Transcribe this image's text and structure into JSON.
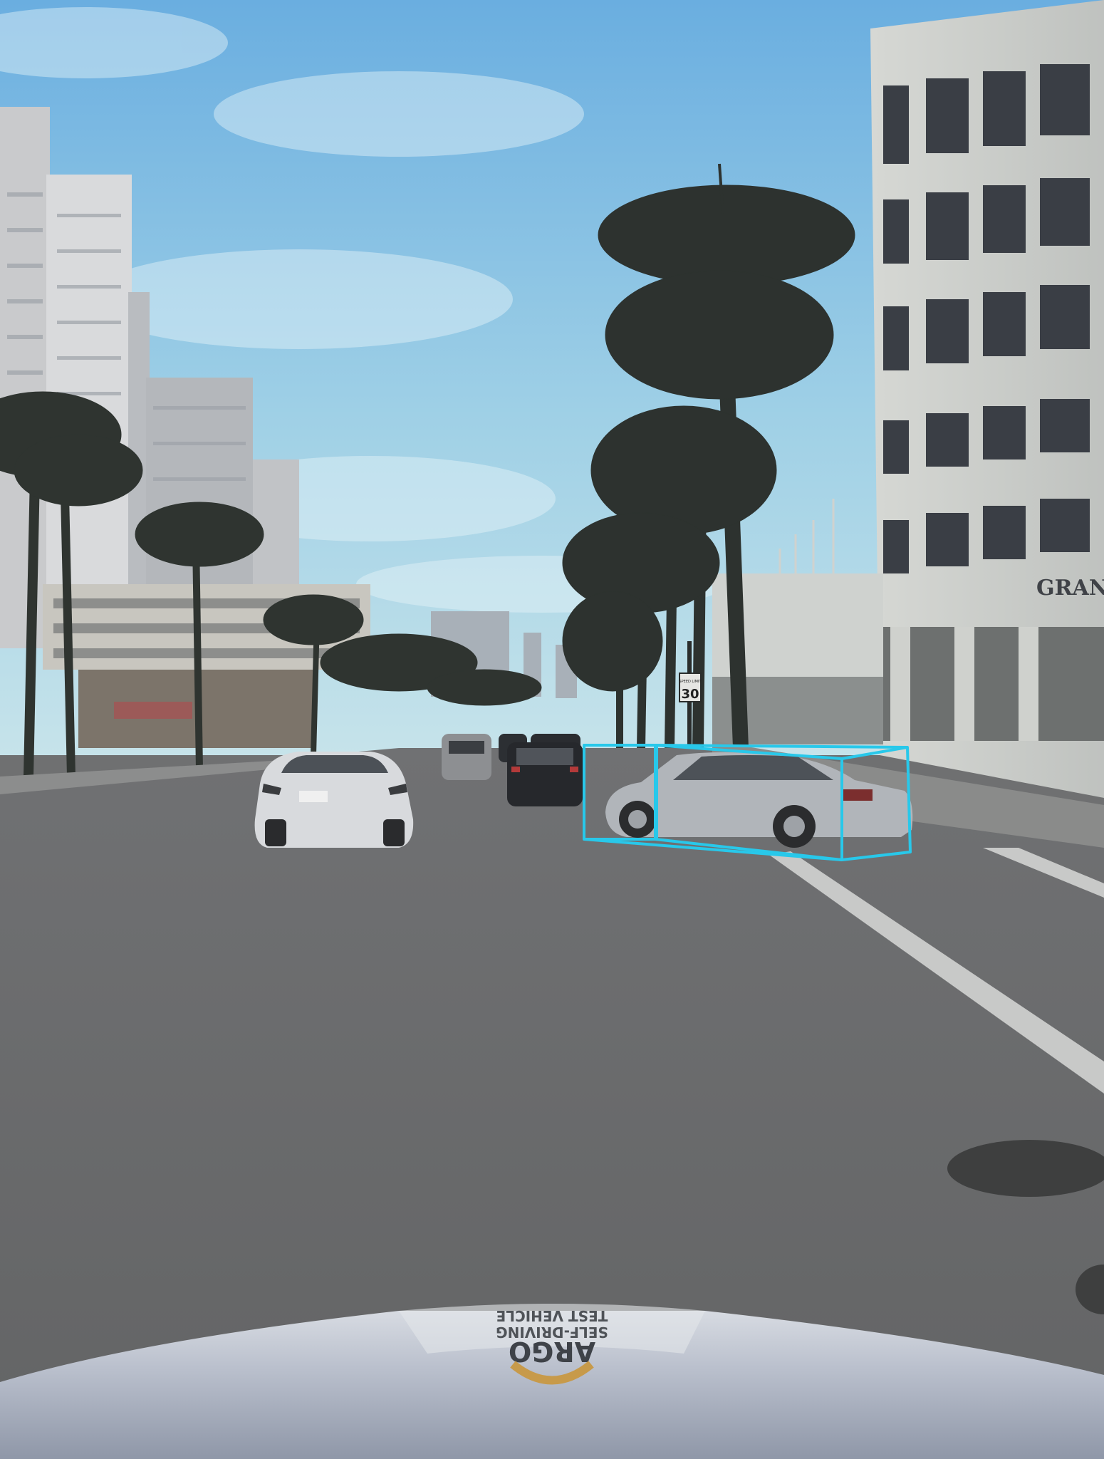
{
  "scene": {
    "signs": {
      "speed_limit_text": "30",
      "speed_limit_small": "SPEED LIMIT"
    },
    "building_sign": "GRANI",
    "hood": {
      "brand": "ARGO",
      "line1": "SELF-DRIVING",
      "line2": "TEST VEHICLE"
    },
    "bbox_color": "#28c8ea",
    "sky_top": "#6fb6e3",
    "sky_bottom": "#bfe0ea",
    "road_color": "#6a6b6c"
  }
}
